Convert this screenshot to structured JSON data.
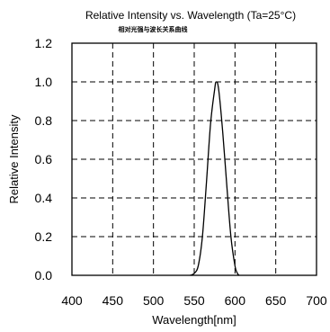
{
  "chart_data": {
    "type": "line",
    "title": "Relative Intensity vs. Wavelength (Ta=25°C)",
    "subtitle": "相对光强与波长关系曲线",
    "xlabel": "Wavelength[nm]",
    "ylabel": "Relative Intensity",
    "xlim": [
      400,
      700
    ],
    "ylim": [
      0.0,
      1.2
    ],
    "x_ticks": [
      "400",
      "450",
      "500",
      "550",
      "600",
      "650",
      "700"
    ],
    "y_ticks": [
      "0.0",
      "0.2",
      "0.4",
      "0.6",
      "0.8",
      "1.0",
      "1.2"
    ],
    "grid": true,
    "series": [
      {
        "x": [
          545,
          550,
          555,
          560,
          565,
          570,
          575,
          577,
          580,
          585,
          590,
          595,
          600,
          603,
          605
        ],
        "y": [
          0.0,
          0.01,
          0.05,
          0.2,
          0.48,
          0.78,
          0.96,
          1.0,
          0.96,
          0.74,
          0.46,
          0.2,
          0.05,
          0.01,
          0.0
        ]
      }
    ]
  }
}
